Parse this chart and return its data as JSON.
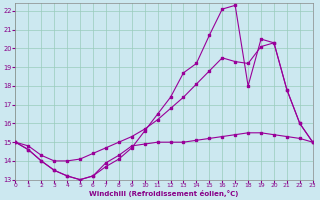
{
  "background_color": "#cce8f0",
  "grid_color": "#99ccbb",
  "line_color": "#990099",
  "xlabel": "Windchill (Refroidissement éolien,°C)",
  "xlim": [
    0,
    23
  ],
  "ylim": [
    13,
    22.4
  ],
  "yticks": [
    13,
    14,
    15,
    16,
    17,
    18,
    19,
    20,
    21,
    22
  ],
  "xticks": [
    0,
    1,
    2,
    3,
    4,
    5,
    6,
    7,
    8,
    9,
    10,
    11,
    12,
    13,
    14,
    15,
    16,
    17,
    18,
    19,
    20,
    21,
    22,
    23
  ],
  "series1_x": [
    0,
    1,
    2,
    3,
    4,
    5,
    6,
    7,
    8,
    9,
    10,
    11,
    12,
    13,
    14,
    15,
    16,
    17,
    18,
    19,
    20,
    21,
    22,
    23
  ],
  "series1_y": [
    15.0,
    14.6,
    14.0,
    13.5,
    13.2,
    13.0,
    13.2,
    13.7,
    14.1,
    14.7,
    15.6,
    16.5,
    17.4,
    18.7,
    19.2,
    20.7,
    22.1,
    22.3,
    18.0,
    20.5,
    20.3,
    17.8,
    16.0,
    15.0
  ],
  "series2_x": [
    0,
    1,
    2,
    3,
    4,
    5,
    6,
    7,
    8,
    9,
    10,
    11,
    12,
    13,
    14,
    15,
    16,
    17,
    18,
    19,
    20,
    21,
    22,
    23
  ],
  "series2_y": [
    15.0,
    14.8,
    14.3,
    14.0,
    14.0,
    14.1,
    14.4,
    14.7,
    15.0,
    15.3,
    15.7,
    16.2,
    16.8,
    17.4,
    18.1,
    18.8,
    19.5,
    19.3,
    19.2,
    20.1,
    20.3,
    17.8,
    16.0,
    15.0
  ],
  "series3_x": [
    0,
    1,
    2,
    3,
    4,
    5,
    6,
    7,
    8,
    9,
    10,
    11,
    12,
    13,
    14,
    15,
    16,
    17,
    18,
    19,
    20,
    21,
    22,
    23
  ],
  "series3_y": [
    15.0,
    14.6,
    14.0,
    13.5,
    13.2,
    13.0,
    13.2,
    13.9,
    14.3,
    14.8,
    14.9,
    15.0,
    15.0,
    15.0,
    15.1,
    15.2,
    15.3,
    15.4,
    15.5,
    15.5,
    15.4,
    15.3,
    15.2,
    15.0
  ]
}
